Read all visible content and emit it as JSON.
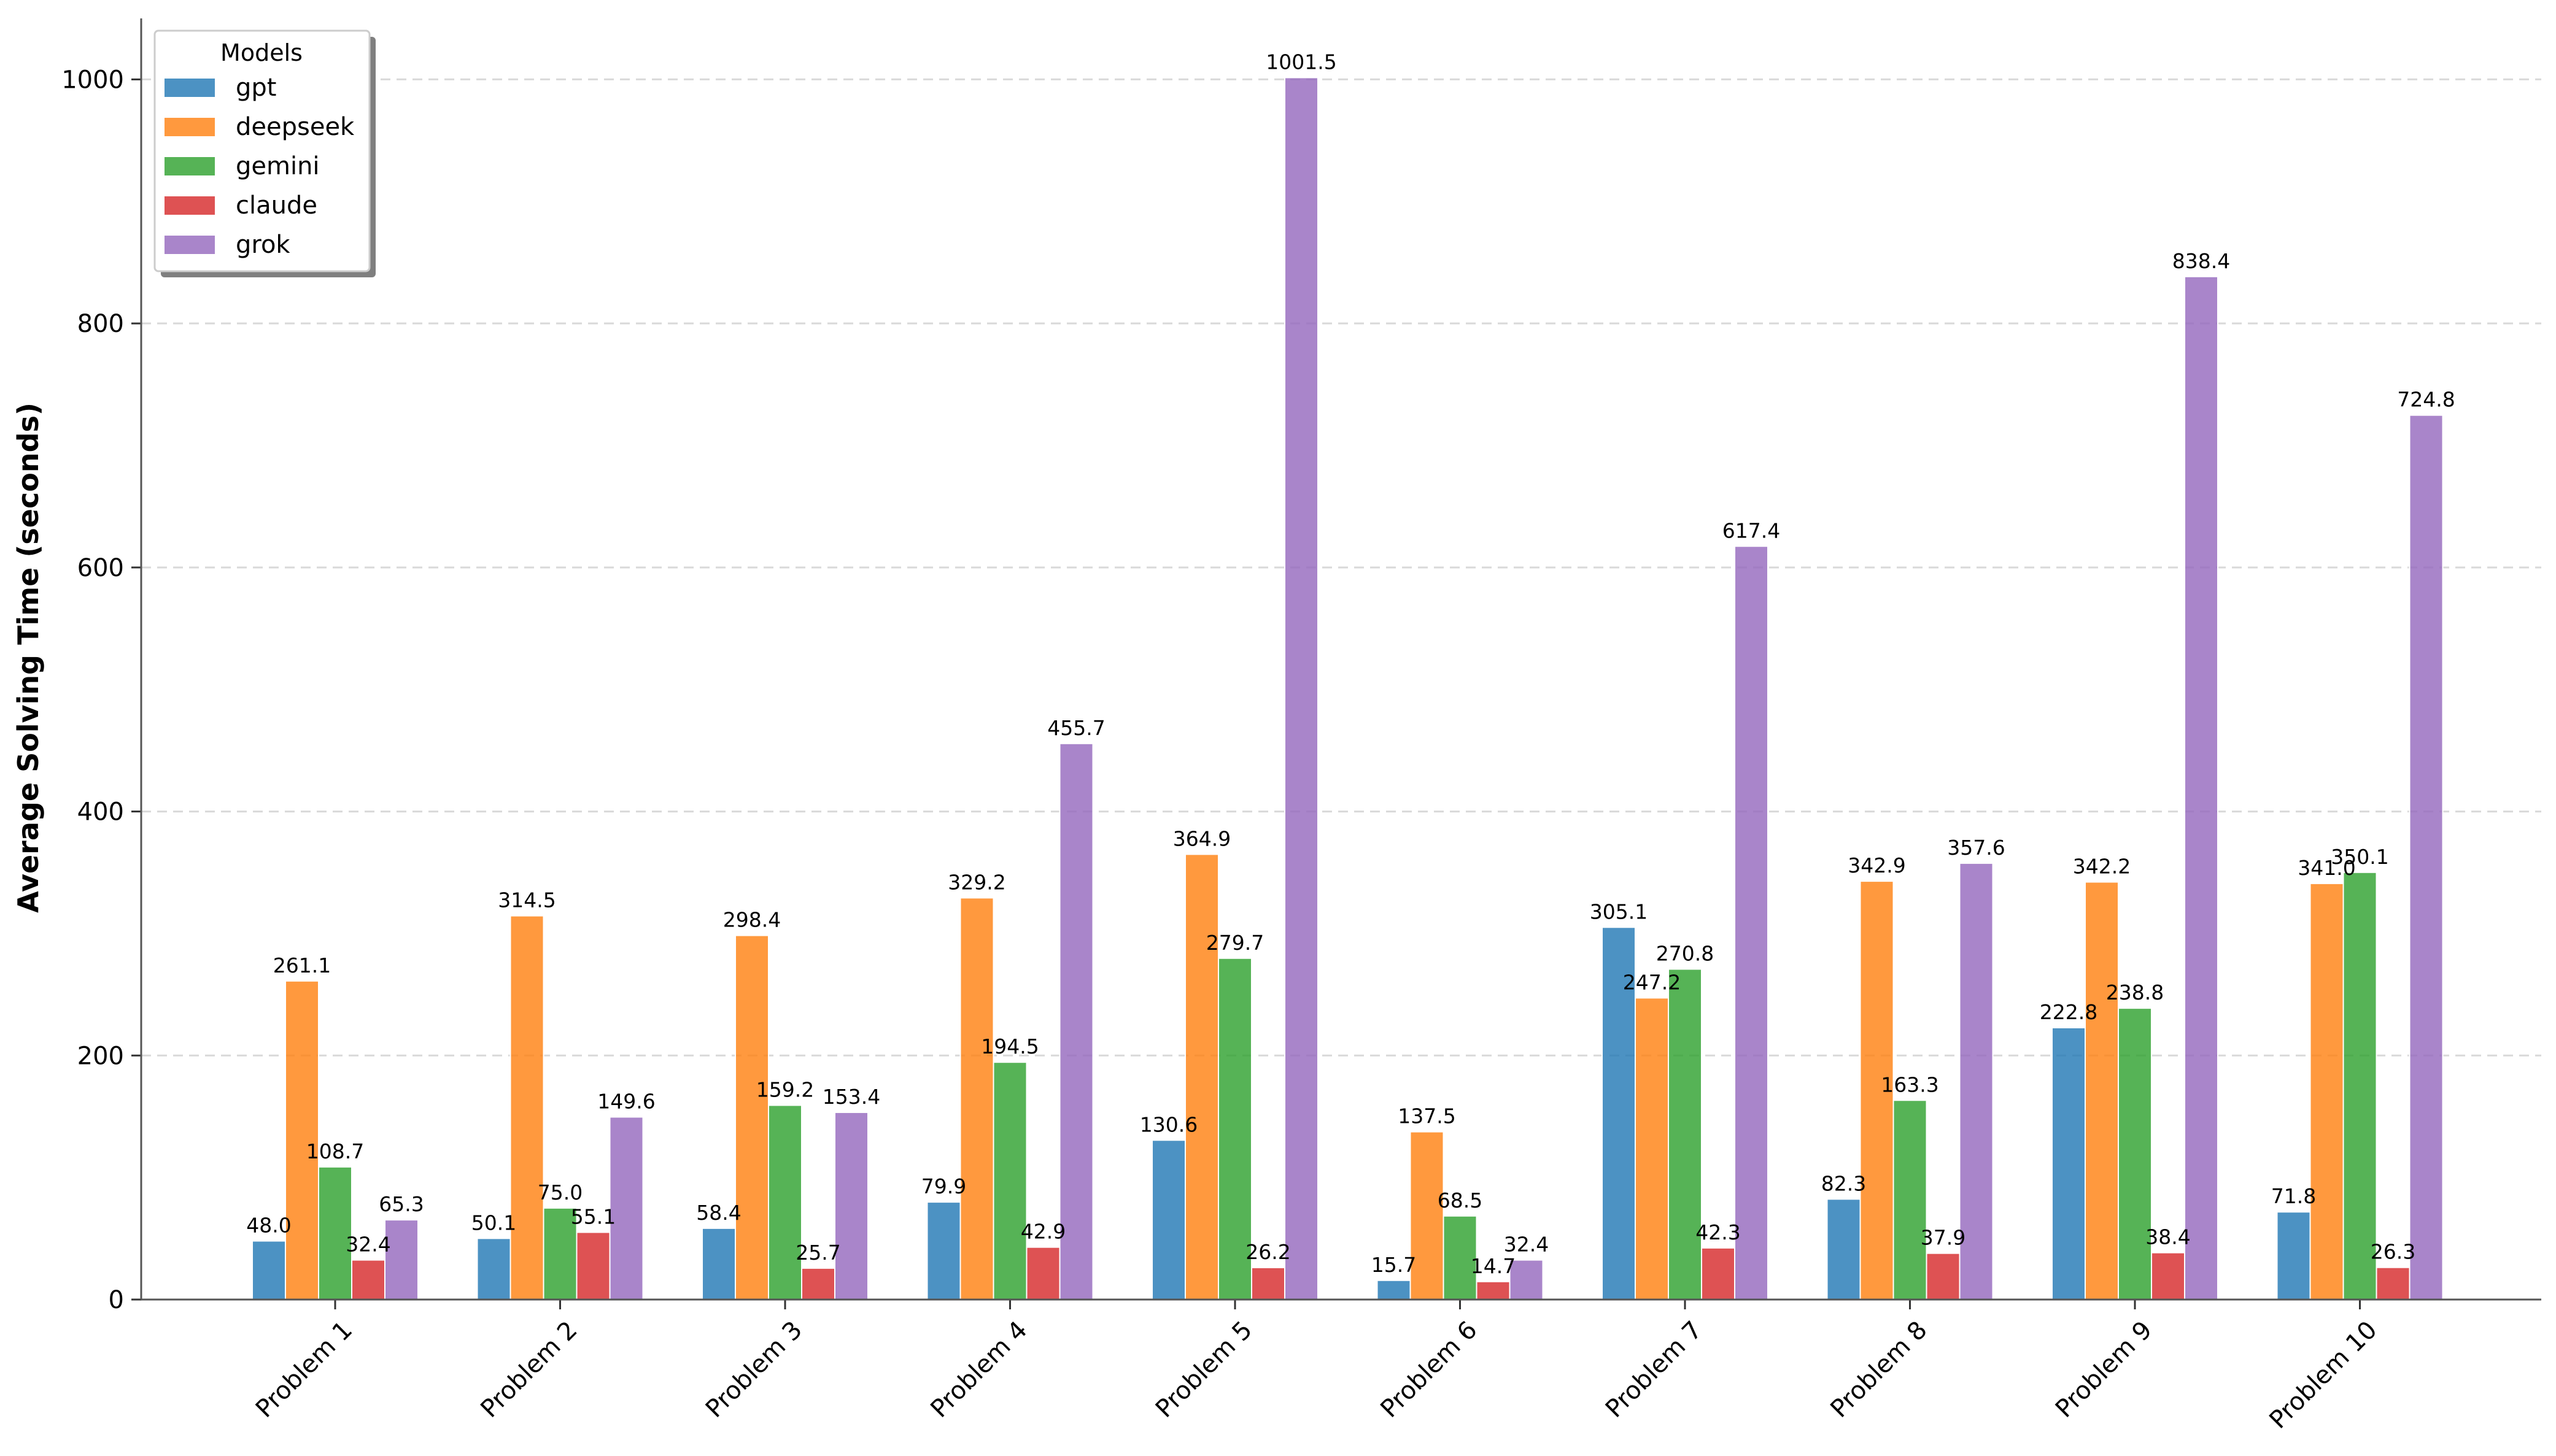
{
  "chart_data": {
    "type": "bar",
    "title": "",
    "xlabel": "",
    "ylabel": "Average Solving Time (seconds)",
    "ylim": [
      0,
      1050
    ],
    "yticks": [
      0,
      200,
      400,
      600,
      800,
      1000
    ],
    "grid": "y-dashed",
    "categories": [
      "Problem 1",
      "Problem 2",
      "Problem 3",
      "Problem 4",
      "Problem 5",
      "Problem 6",
      "Problem 7",
      "Problem 8",
      "Problem 9",
      "Problem 10"
    ],
    "legend": {
      "title": "Models",
      "position": "top-left"
    },
    "series": [
      {
        "name": "gpt",
        "color": "#1f77b4",
        "values": [
          48.0,
          50.1,
          58.4,
          79.9,
          130.6,
          15.7,
          305.1,
          82.3,
          222.8,
          71.8
        ]
      },
      {
        "name": "deepseek",
        "color": "#ff7f0e",
        "values": [
          261.1,
          314.5,
          298.4,
          329.2,
          364.9,
          137.5,
          247.2,
          342.9,
          342.2,
          341.0
        ]
      },
      {
        "name": "gemini",
        "color": "#2ca02c",
        "values": [
          108.7,
          75.0,
          159.2,
          194.5,
          279.7,
          68.5,
          270.8,
          163.3,
          238.8,
          350.1
        ]
      },
      {
        "name": "claude",
        "color": "#d62728",
        "values": [
          32.4,
          55.1,
          25.7,
          42.9,
          26.2,
          14.7,
          42.3,
          37.9,
          38.4,
          26.3
        ]
      },
      {
        "name": "grok",
        "color": "#9467bd",
        "values": [
          65.3,
          149.6,
          153.4,
          455.7,
          1001.5,
          32.4,
          617.4,
          357.6,
          838.4,
          724.8
        ]
      }
    ]
  }
}
